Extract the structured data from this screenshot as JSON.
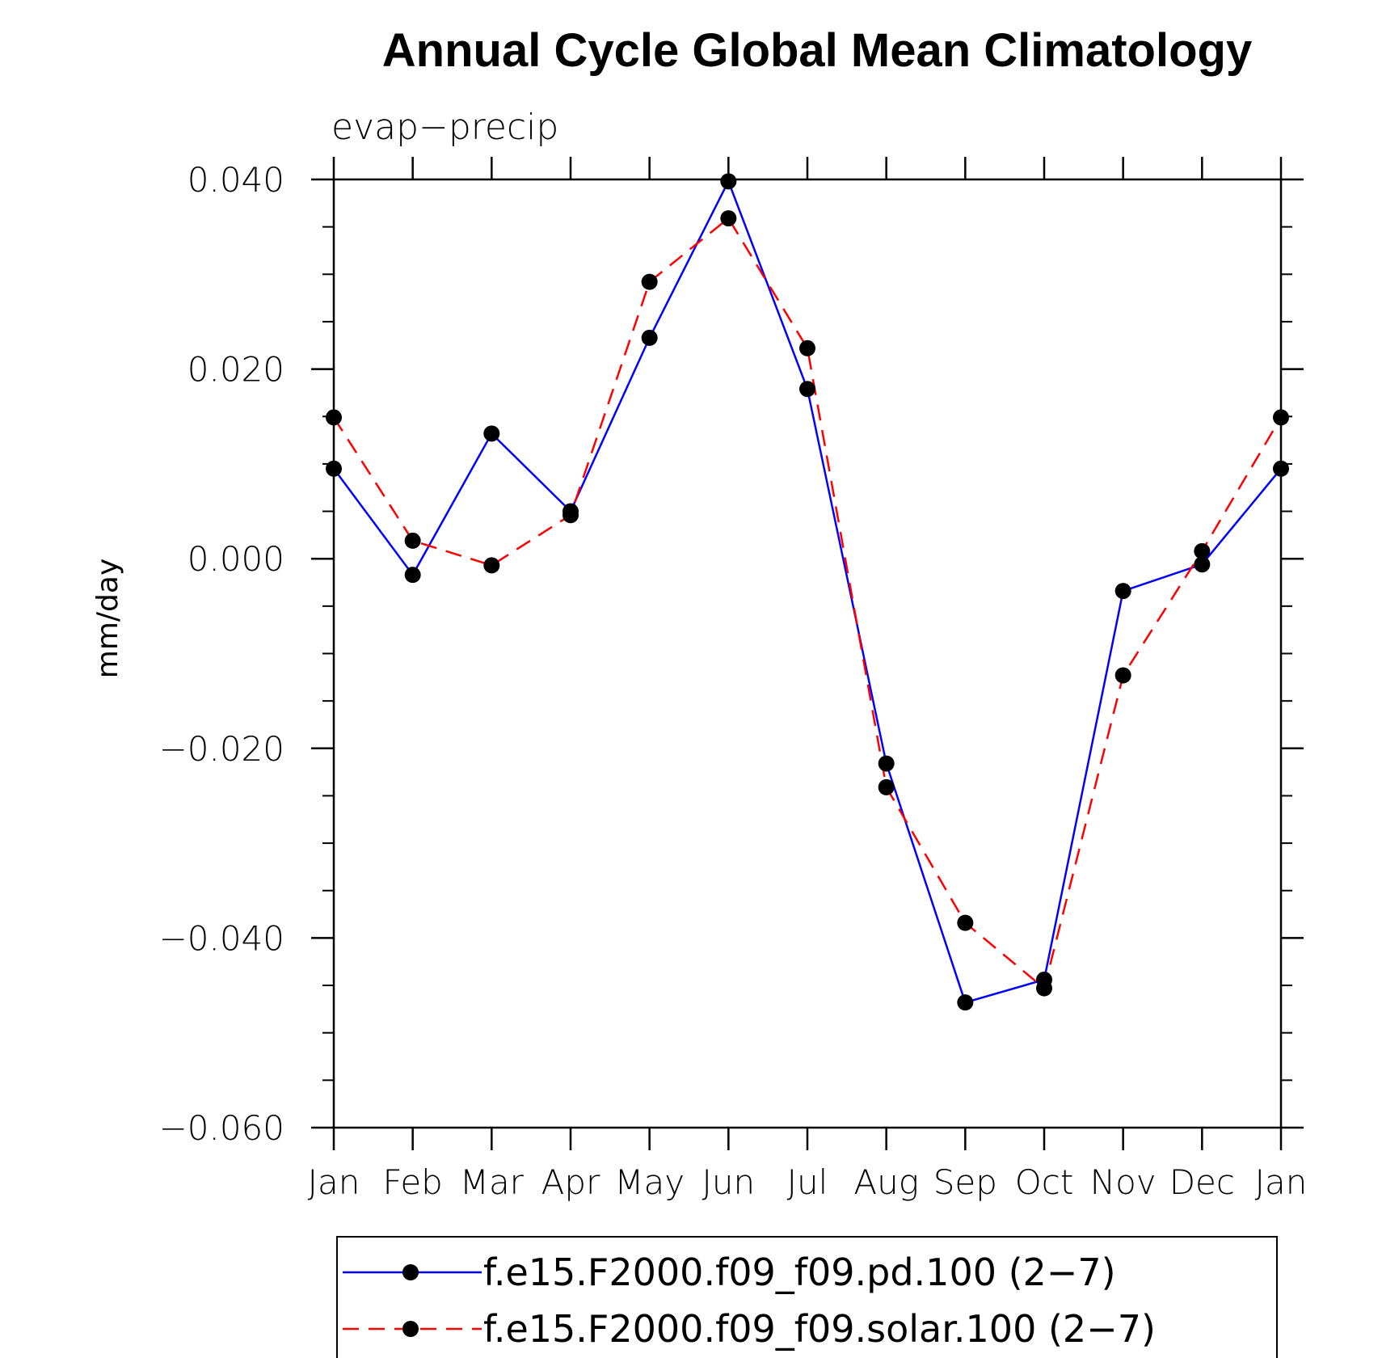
{
  "chart_data": {
    "type": "line",
    "title": "Annual Cycle Global Mean Climatology",
    "subtitle": "evap−precip",
    "xlabel": "",
    "ylabel": "mm/day",
    "categories": [
      "Jan",
      "Feb",
      "Mar",
      "Apr",
      "May",
      "Jun",
      "Jul",
      "Aug",
      "Sep",
      "Oct",
      "Nov",
      "Dec",
      "Jan"
    ],
    "ylim": [
      -0.06,
      0.04
    ],
    "yticks": [
      0.04,
      0.02,
      0.0,
      -0.02,
      -0.04,
      -0.06
    ],
    "ytick_labels": [
      "0.040",
      "0.020",
      "0.000",
      "−0.020",
      "−0.040",
      "−0.060"
    ],
    "yminor_step": 0.005,
    "series": [
      {
        "name": "f.e15.F2000.f09_f09.pd.100 (2−7)",
        "color": "#0000ff",
        "dash": "solid",
        "values": [
          0.0095,
          -0.0017,
          0.0132,
          0.005,
          0.0233,
          0.0398,
          0.0179,
          -0.0216,
          -0.0468,
          -0.0444,
          -0.0034,
          -0.0006,
          0.0095
        ]
      },
      {
        "name": "f.e15.F2000.f09_f09.solar.100 (2−7)",
        "color": "#ff0000",
        "dash": "dashed",
        "values": [
          0.0149,
          0.0019,
          -0.0007,
          0.0046,
          0.0292,
          0.0359,
          0.0222,
          -0.0241,
          -0.0384,
          -0.0453,
          -0.0123,
          0.0008,
          0.0149
        ]
      }
    ],
    "legend": "bottom"
  }
}
